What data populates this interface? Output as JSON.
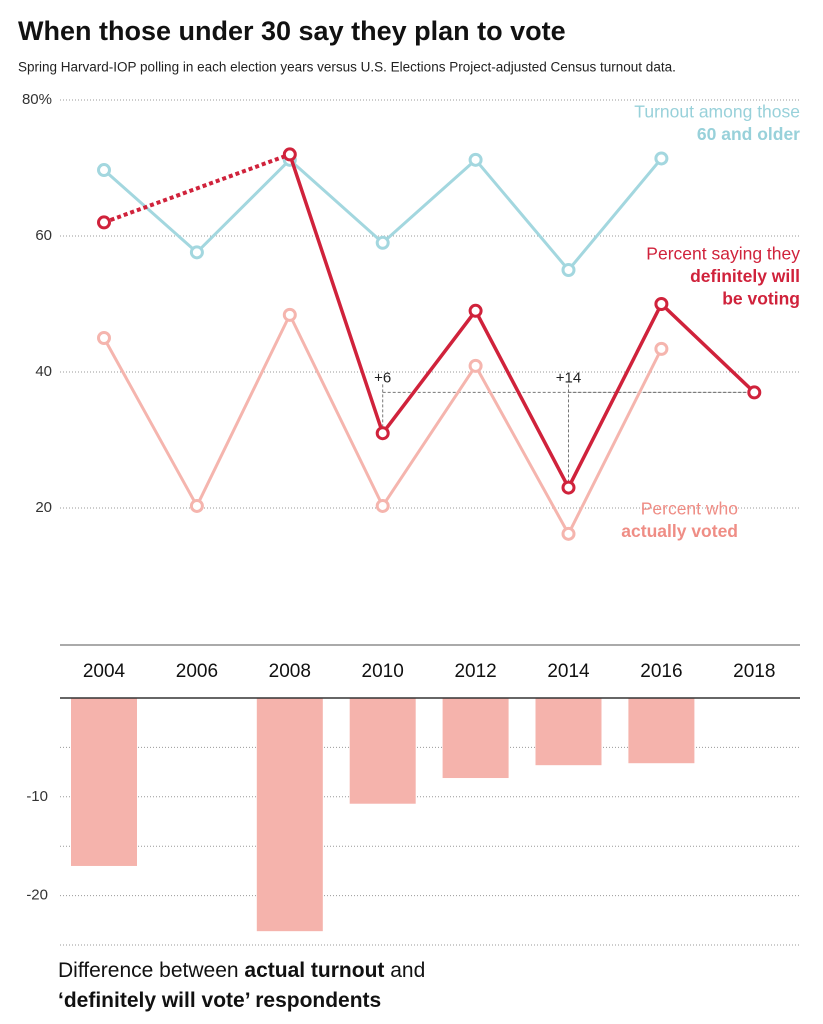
{
  "chart_data": [
    {
      "type": "line",
      "title": "When those under 30 say they plan to vote",
      "subtitle": "Spring Harvard-IOP polling in each election years versus U.S. Elections Project-adjusted Census turnout data.",
      "ylim": [
        5,
        80
      ],
      "yticks": [
        20,
        40,
        60,
        {
          "value": 80,
          "label": "80%"
        }
      ],
      "grid": true,
      "series": [
        {
          "name_lines": [
            "Turnout among those",
            "60 and older"
          ],
          "color": "#a3d7df",
          "values": [
            69.7,
            57.6,
            71.2,
            59.0,
            71.2,
            55.0,
            71.4,
            null
          ]
        },
        {
          "name_lines": [
            "Percent who",
            "actually voted"
          ],
          "color": "#f5b5ae",
          "values": [
            45.0,
            20.3,
            48.4,
            20.3,
            40.9,
            16.2,
            43.4,
            null
          ]
        },
        {
          "name_lines": [
            "Percent saying they",
            "definitely will",
            "be voting"
          ],
          "color": "#d0223b",
          "values": [
            62,
            null,
            72,
            31,
            49,
            23,
            50,
            37
          ]
        }
      ],
      "annotations": [
        {
          "text": "+6",
          "x": "2010"
        },
        {
          "text": "+14",
          "x": "2014"
        }
      ]
    },
    {
      "type": "bar",
      "title_lines": [
        [
          {
            "text": "Difference between ",
            "bold": false
          },
          {
            "text": "actual turnout",
            "bold": true
          },
          {
            "text": " and",
            "bold": false
          }
        ],
        [
          {
            "text": "‘definitely will vote’ respondents",
            "bold": true
          }
        ]
      ],
      "categories": [
        "2004",
        "2006",
        "2008",
        "2010",
        "2012",
        "2014",
        "2016",
        "2018"
      ],
      "values": [
        -17.0,
        null,
        -23.6,
        -10.7,
        -8.1,
        -6.8,
        -6.6,
        null
      ],
      "color": "#f5b3ac",
      "ylim": [
        -25,
        0
      ],
      "yticks": [
        -10,
        -20
      ],
      "minor_yticks": [
        -5,
        -15,
        -25
      ],
      "grid": true
    }
  ]
}
